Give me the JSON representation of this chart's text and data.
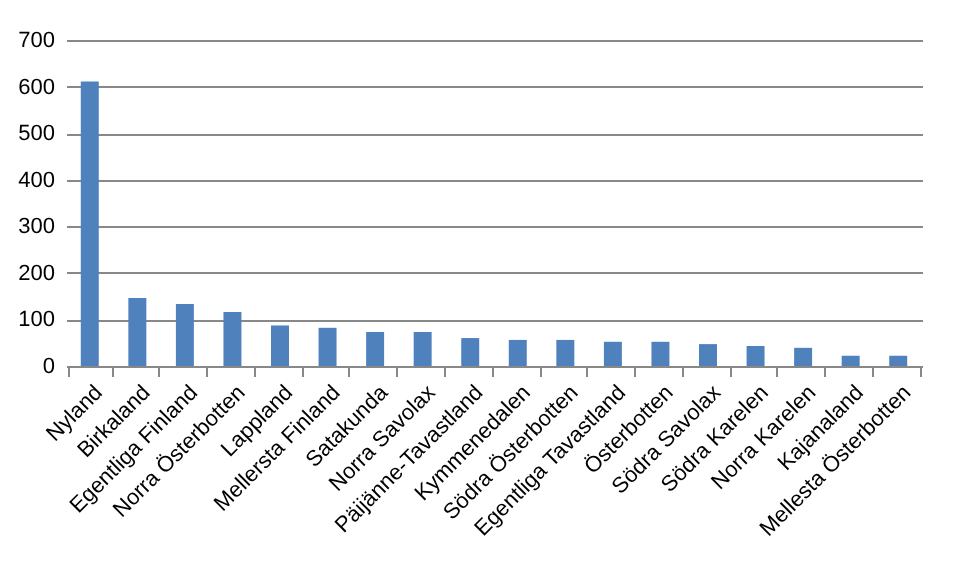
{
  "chart_data": {
    "type": "bar",
    "categories": [
      "Nyland",
      "Birkaland",
      "Egentliga Finland",
      "Norra Österbotten",
      "Lappland",
      "Mellersta Finland",
      "Satakunda",
      "Norra Savolax",
      "Päijänne-Tavastland",
      "Kymmenedalen",
      "Södra Österbotten",
      "Egentliga Tavastland",
      "Österbotten",
      "Södra Savolax",
      "Södra Karelen",
      "Norra Karelen",
      "Kajanaland",
      "Mellesta Österbotten"
    ],
    "values": [
      611,
      146,
      133,
      116,
      87,
      82,
      73,
      73,
      60,
      56,
      56,
      52,
      52,
      47,
      43,
      39,
      22,
      22
    ],
    "color": "#4f81bd",
    "ylim": [
      0,
      700
    ],
    "yticks": [
      0,
      100,
      200,
      300,
      400,
      500,
      600,
      700
    ],
    "grid": "y"
  }
}
